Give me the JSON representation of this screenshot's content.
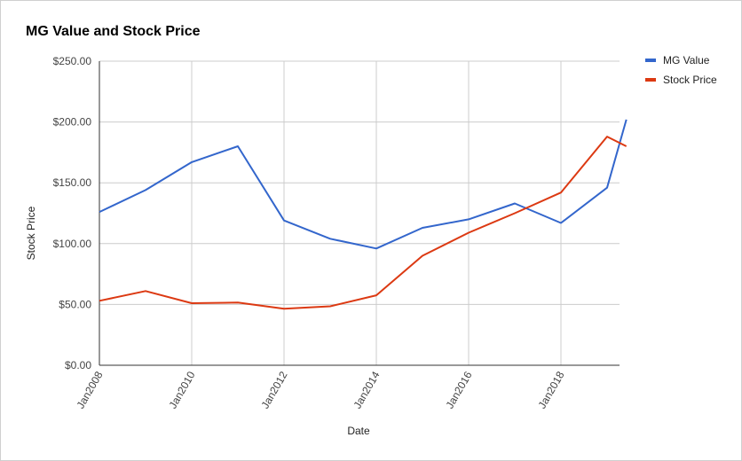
{
  "chart_data": {
    "type": "line",
    "title": "MG Value and Stock Price",
    "xlabel": "Date",
    "ylabel": "Stock Price",
    "x": [
      "2008-01",
      "2009-01",
      "2010-01",
      "2011-01",
      "2012-01",
      "2013-01",
      "2014-01",
      "2015-01",
      "2016-01",
      "2017-01",
      "2018-01",
      "2019-01",
      "2019-06"
    ],
    "x_ticks": [
      "Jan2008",
      "Jan2010",
      "Jan2012",
      "Jan2014",
      "Jan2016",
      "Jan2018"
    ],
    "y_ticks": [
      "$0.00",
      "$50.00",
      "$100.00",
      "$150.00",
      "$200.00",
      "$250.00"
    ],
    "ylim": [
      0,
      250
    ],
    "grid": true,
    "legend_position": "right",
    "series": [
      {
        "name": "MG Value",
        "color": "#3366cc",
        "values": [
          126,
          144,
          167,
          180,
          119,
          104,
          96,
          113,
          120,
          133,
          117,
          146,
          202
        ]
      },
      {
        "name": "Stock Price",
        "color": "#dc3912",
        "values": [
          53,
          61,
          51,
          51.5,
          46.5,
          48.5,
          57.5,
          90,
          109,
          125,
          142,
          188,
          180
        ]
      }
    ]
  }
}
